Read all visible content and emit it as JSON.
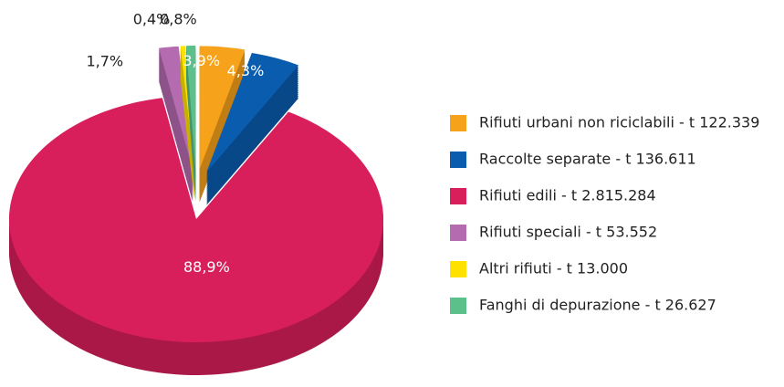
{
  "chart_data": {
    "type": "pie",
    "categories": [
      "Rifiuti urbani non riciclabili - t 122.339",
      "Raccolte separate - t 136.611",
      "Rifiuti edili - t 2.815.284",
      "Rifiuti speciali - t 53.552",
      "Altri rifiuti - t 13.000",
      "Fanghi di depurazione - t 26.627"
    ],
    "values": [
      3.9,
      4.3,
      88.9,
      1.7,
      0.4,
      0.8
    ],
    "value_labels": [
      "3,9%",
      "4,3%",
      "88,9%",
      "1,7%",
      "0,4%",
      "0,8%"
    ],
    "colors": [
      "#f7a21b",
      "#0a5cae",
      "#d91f5b",
      "#b56bb0",
      "#ffe100",
      "#5cc08a"
    ],
    "legend": "right"
  }
}
